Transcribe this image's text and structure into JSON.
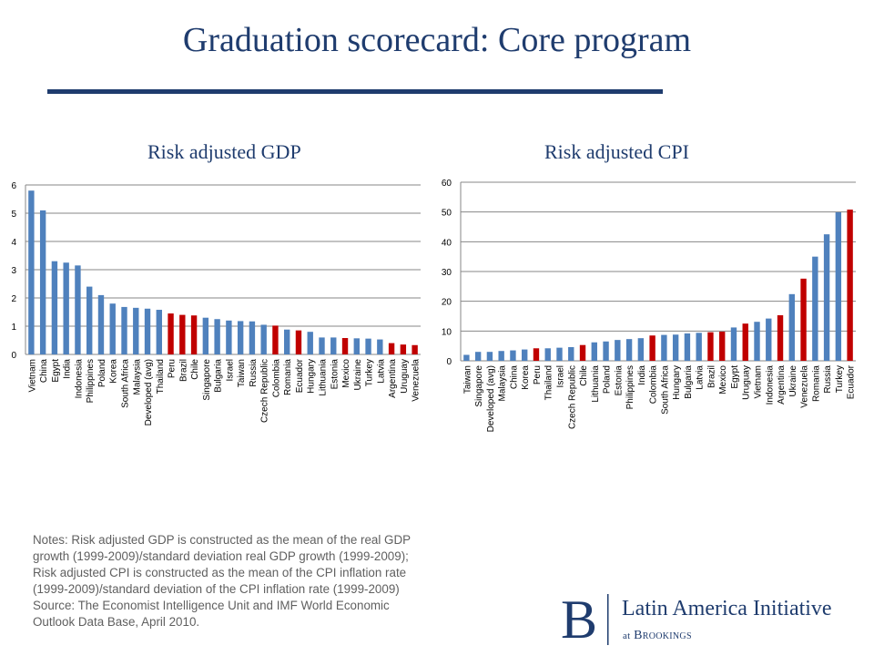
{
  "slide": {
    "title": "Graduation scorecard: Core program",
    "subtitle_left": "Risk adjusted GDP",
    "subtitle_right": "Risk adjusted CPI"
  },
  "notes": [
    "Notes: Risk adjusted GDP is constructed as the mean of the real GDP",
    "growth (1999-2009)/standard deviation real GDP growth (1999-2009);",
    "Risk adjusted CPI is constructed as the mean of the CPI inflation rate",
    "(1999-2009)/standard deviation of the CPI inflation rate (1999-2009)",
    "Source: The Economist Intelligence Unit and IMF World Economic",
    "Outlook Data Base, April 2010."
  ],
  "logo": {
    "mark": "B",
    "name": "Latin America Initiative",
    "sub_at": "at",
    "sub_org": "Brookings"
  },
  "colors": {
    "title": "#1f3c6e",
    "bar_blue": "#4f81bd",
    "bar_red": "#c00000",
    "grid": "#878787"
  },
  "chart_data": [
    {
      "type": "bar",
      "title": "Risk adjusted GDP",
      "categories": [
        "Vietnam",
        "China",
        "Egypt",
        "India",
        "Indonesia",
        "Philippines",
        "Poland",
        "Korea",
        "South Africa",
        "Malaysia",
        "Developed (avg)",
        "Thailand",
        "Peru",
        "Brazil",
        "Chile",
        "Singapore",
        "Bulgaria",
        "Israel",
        "Taiwan",
        "Russia",
        "Czech Republic",
        "Colombia",
        "Romania",
        "Ecuador",
        "Hungary",
        "Lithuania",
        "Estonia",
        "Mexico",
        "Ukraine",
        "Turkey",
        "Latvia",
        "Argentina",
        "Uruguay",
        "Venezuela"
      ],
      "values": [
        5.8,
        5.1,
        3.3,
        3.25,
        3.15,
        2.4,
        2.1,
        1.8,
        1.68,
        1.65,
        1.62,
        1.58,
        1.45,
        1.4,
        1.38,
        1.3,
        1.25,
        1.2,
        1.18,
        1.17,
        1.05,
        1.02,
        0.88,
        0.85,
        0.8,
        0.6,
        0.6,
        0.58,
        0.57,
        0.56,
        0.53,
        0.4,
        0.35,
        0.33
      ],
      "highlight": [
        "Peru",
        "Brazil",
        "Chile",
        "Colombia",
        "Ecuador",
        "Mexico",
        "Argentina",
        "Uruguay",
        "Venezuela"
      ],
      "yticks": [
        "0",
        "1",
        "2",
        "3",
        "4",
        "5",
        "6"
      ],
      "ylim": [
        0,
        6
      ],
      "grid": true,
      "xlabel": "",
      "ylabel": ""
    },
    {
      "type": "bar",
      "title": "Risk adjusted CPI",
      "categories": [
        "Taiwan",
        "Singapore",
        "Developed (avg)",
        "Malaysia",
        "China",
        "Korea",
        "Peru",
        "Thailand",
        "Israel",
        "Czech Republic",
        "Chile",
        "Lithuania",
        "Poland",
        "Estonia",
        "Philippines",
        "India",
        "Colombia",
        "South Africa",
        "Hungary",
        "Bulgaria",
        "Latvia",
        "Brazil",
        "Mexico",
        "Egypt",
        "Uruguay",
        "Vietnam",
        "Indonesia",
        "Argentina",
        "Ukraine",
        "Venezuela",
        "Romania",
        "Russia",
        "Turkey",
        "Ecuador"
      ],
      "values": [
        2,
        3,
        3,
        3.3,
        3.5,
        3.8,
        4.2,
        4.2,
        4.4,
        4.6,
        5.3,
        6.2,
        6.5,
        7,
        7.3,
        7.6,
        8.5,
        8.7,
        8.8,
        9.2,
        9.4,
        9.6,
        9.8,
        11.2,
        12.5,
        13.1,
        14.2,
        15.3,
        22.4,
        27.6,
        35,
        42.5,
        49.9,
        50.8
      ],
      "highlight": [
        "Peru",
        "Chile",
        "Colombia",
        "Brazil",
        "Mexico",
        "Uruguay",
        "Argentina",
        "Venezuela",
        "Ecuador"
      ],
      "yticks": [
        "0",
        "10",
        "20",
        "30",
        "40",
        "50",
        "60"
      ],
      "ylim": [
        0,
        60
      ],
      "grid": true,
      "xlabel": "",
      "ylabel": ""
    }
  ]
}
